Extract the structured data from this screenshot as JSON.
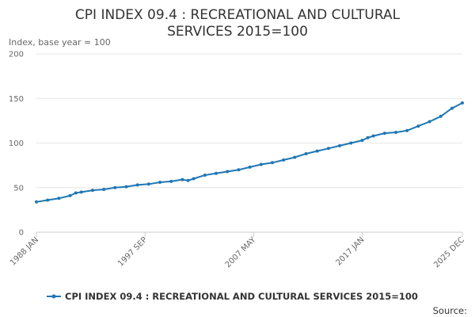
{
  "chart_data": {
    "type": "line",
    "title_line1": "CPI INDEX 09.4 : RECREATIONAL AND CULTURAL",
    "title_line2": "SERVICES 2015=100",
    "ylabel": "Index, base year = 100",
    "ylim": [
      0,
      200
    ],
    "yticks": [
      "0",
      "50",
      "100",
      "150",
      "200"
    ],
    "xlim": [
      1988.0,
      2025.917
    ],
    "xticks": [
      {
        "label": "1988 JAN",
        "x": 1988.0
      },
      {
        "label": "1997 SEP",
        "x": 1997.667
      },
      {
        "label": "2007 MAY",
        "x": 2007.333
      },
      {
        "label": "2017 JAN",
        "x": 2017.0
      },
      {
        "label": "2025 DEC",
        "x": 2025.917
      }
    ],
    "legend_position": "bottom",
    "grid": true,
    "source_label": "Source:",
    "series": [
      {
        "name": "CPI INDEX 09.4 : RECREATIONAL AND CULTURAL SERVICES 2015=100",
        "color": "#1f77b4",
        "x": [
          1988.0,
          1989.0,
          1990.0,
          1991.0,
          1991.5,
          1992.0,
          1993.0,
          1994.0,
          1995.0,
          1996.0,
          1997.0,
          1998.0,
          1999.0,
          2000.0,
          2001.0,
          2001.5,
          2002.0,
          2003.0,
          2004.0,
          2005.0,
          2006.0,
          2007.0,
          2008.0,
          2009.0,
          2010.0,
          2011.0,
          2012.0,
          2013.0,
          2014.0,
          2015.0,
          2016.0,
          2017.0,
          2017.5,
          2018.0,
          2019.0,
          2020.0,
          2021.0,
          2022.0,
          2023.0,
          2024.0,
          2025.0,
          2025.917
        ],
        "y": [
          34,
          36,
          38,
          41,
          44,
          45,
          47,
          48,
          50,
          51,
          53,
          54,
          56,
          57,
          59,
          58,
          60,
          64,
          66,
          68,
          70,
          73,
          76,
          78,
          81,
          84,
          88,
          91,
          94,
          97,
          100,
          103,
          106,
          108,
          111,
          112,
          114,
          119,
          124,
          130,
          139,
          145
        ]
      }
    ]
  }
}
